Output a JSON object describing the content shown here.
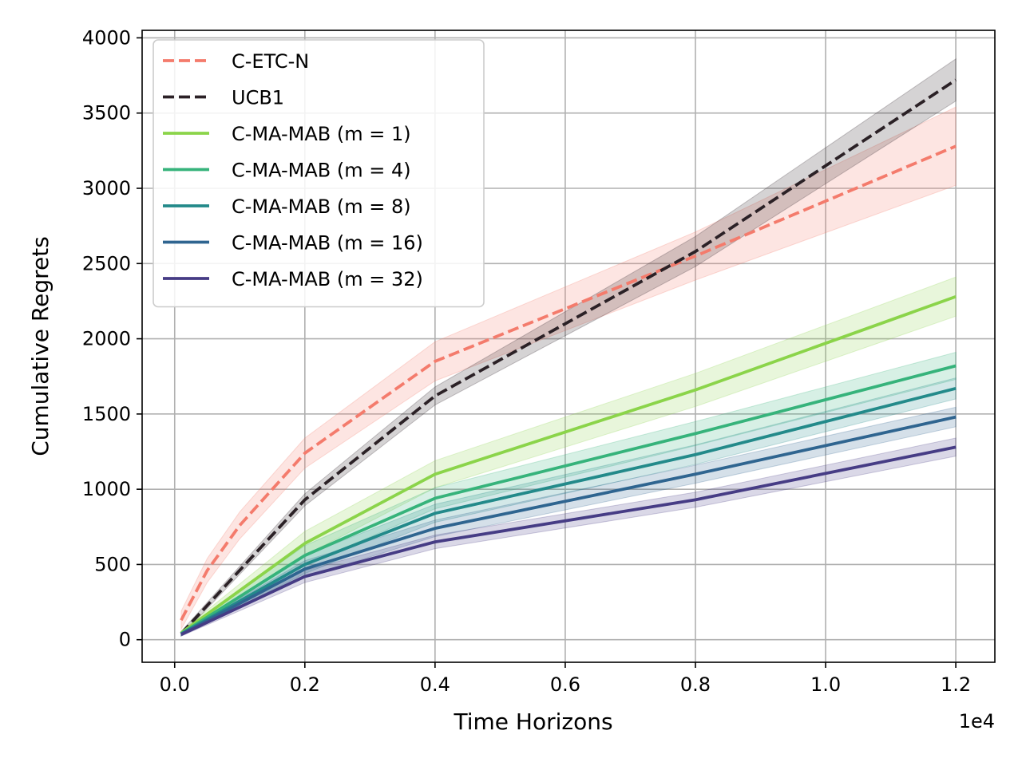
{
  "chart_data": {
    "type": "line",
    "xlabel": "Time Horizons",
    "ylabel": "Cumulative Regrets",
    "x_offset_text": "1e4",
    "x_tick_labels": [
      "0.0",
      "0.2",
      "0.4",
      "0.6",
      "0.8",
      "1.0",
      "1.2"
    ],
    "y_tick_labels": [
      "0",
      "500",
      "1000",
      "1500",
      "2000",
      "2500",
      "3000",
      "3500",
      "4000"
    ],
    "xlim": [
      -500,
      12600
    ],
    "ylim": [
      -150,
      4050
    ],
    "grid": true,
    "legend_position": "top-left",
    "series": [
      {
        "name": "C-ETC-N",
        "style": "dashed",
        "color": "#f47b6c",
        "x": [
          100,
          500,
          1000,
          2000,
          4000,
          8000,
          12000
        ],
        "y": [
          130,
          460,
          760,
          1240,
          1850,
          2550,
          3280
        ],
        "band": [
          60,
          80,
          90,
          100,
          130,
          160,
          260
        ]
      },
      {
        "name": "UCB1",
        "style": "dashed",
        "color": "#2b2126",
        "x": [
          100,
          2000,
          4000,
          8000,
          12000
        ],
        "y": [
          40,
          930,
          1620,
          2580,
          3720
        ],
        "band": [
          15,
          40,
          60,
          100,
          140
        ]
      },
      {
        "name": "C-MA-MAB (m = 1)",
        "style": "solid",
        "color": "#8bd44a",
        "x": [
          100,
          2000,
          4000,
          8000,
          12000
        ],
        "y": [
          45,
          640,
          1100,
          1660,
          2280
        ],
        "band": [
          12,
          80,
          90,
          110,
          130
        ]
      },
      {
        "name": "C-MA-MAB (m = 4)",
        "style": "solid",
        "color": "#36b37b",
        "x": [
          100,
          2000,
          4000,
          8000,
          12000
        ],
        "y": [
          40,
          560,
          940,
          1370,
          1820
        ],
        "band": [
          12,
          65,
          70,
          80,
          90
        ]
      },
      {
        "name": "C-MA-MAB (m = 8)",
        "style": "solid",
        "color": "#238a8a",
        "x": [
          100,
          2000,
          4000,
          8000,
          12000
        ],
        "y": [
          38,
          500,
          840,
          1230,
          1670
        ],
        "band": [
          12,
          60,
          60,
          65,
          70
        ]
      },
      {
        "name": "C-MA-MAB (m = 16)",
        "style": "solid",
        "color": "#2f6590",
        "x": [
          100,
          2000,
          4000,
          8000,
          12000
        ],
        "y": [
          36,
          470,
          740,
          1100,
          1480
        ],
        "band": [
          10,
          55,
          55,
          60,
          65
        ]
      },
      {
        "name": "C-MA-MAB (m = 32)",
        "style": "solid",
        "color": "#463c85",
        "x": [
          100,
          2000,
          4000,
          8000,
          12000
        ],
        "y": [
          34,
          420,
          650,
          930,
          1280
        ],
        "band": [
          10,
          40,
          45,
          50,
          60
        ]
      }
    ]
  }
}
